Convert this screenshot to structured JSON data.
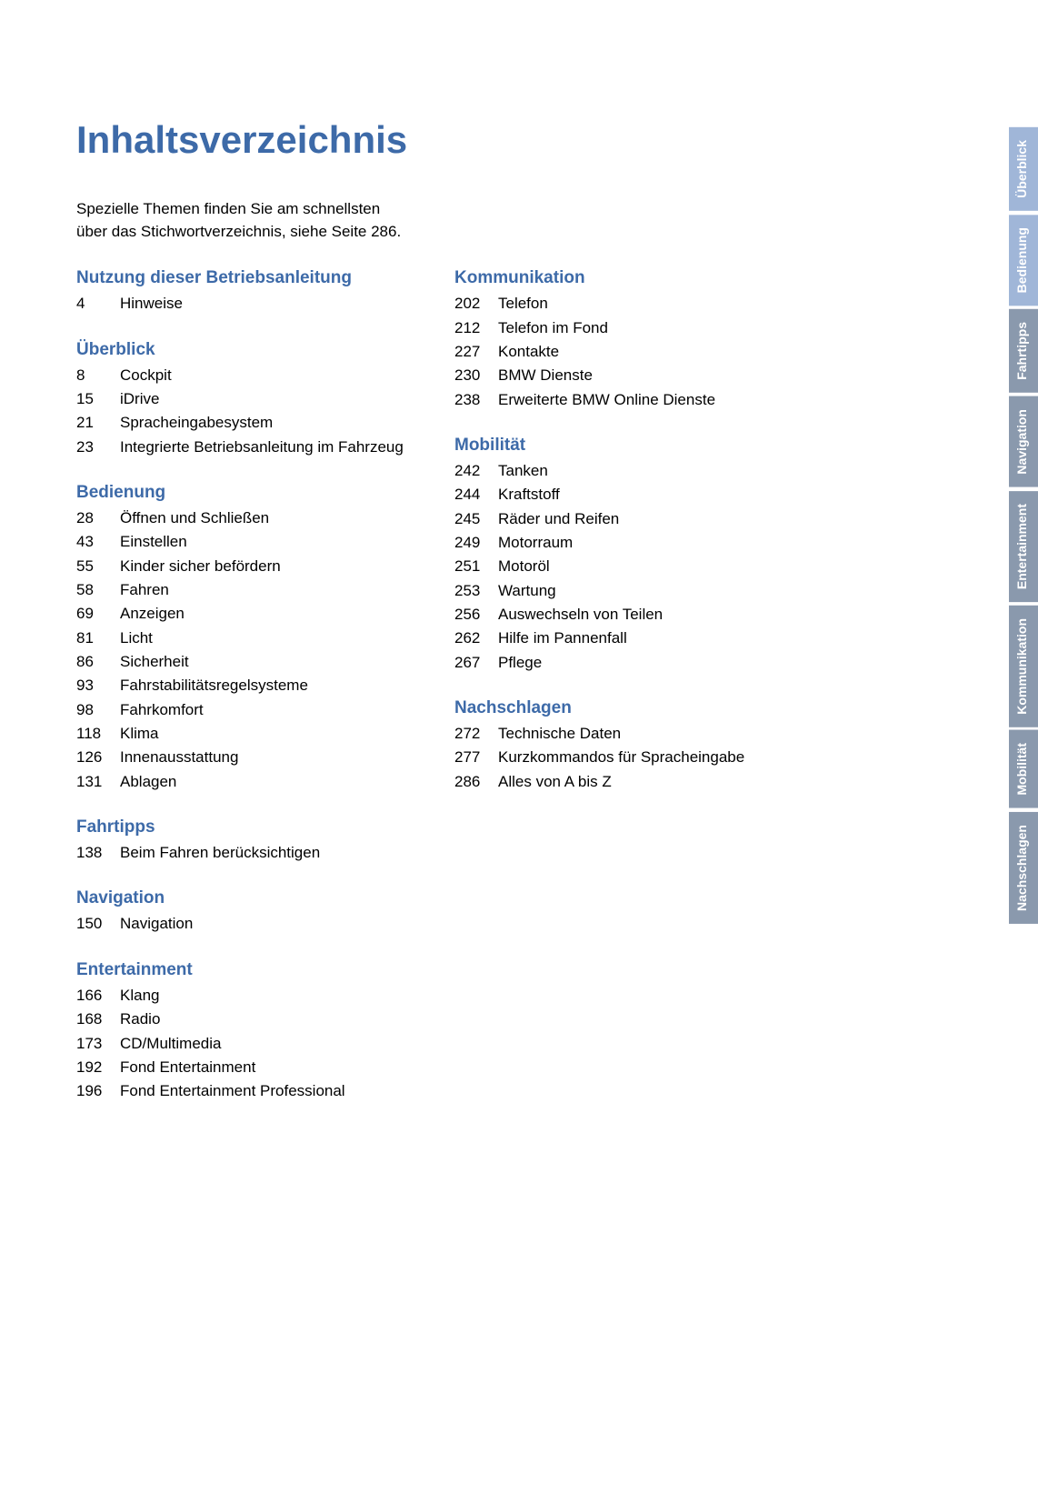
{
  "title": "Inhaltsverzeichnis",
  "intro": "Spezielle Themen finden Sie am schnellsten über das Stichwortverzeichnis, siehe Seite 286.",
  "colors": {
    "heading_blue": "#3d6aa8",
    "text_black": "#000000",
    "tab_active_bg": "#a0b6d8",
    "tab_inactive_bg": "#8a99ad",
    "tab_text": "#ffffff",
    "page_bg": "#ffffff"
  },
  "sections_left": [
    {
      "heading": "Nutzung dieser Betriebsanleitung",
      "items": [
        {
          "page": "4",
          "label": "Hinweise"
        }
      ]
    },
    {
      "heading": "Überblick",
      "items": [
        {
          "page": "8",
          "label": "Cockpit"
        },
        {
          "page": "15",
          "label": "iDrive"
        },
        {
          "page": "21",
          "label": "Spracheingabesystem"
        },
        {
          "page": "23",
          "label": "Integrierte Betriebsanleitung im Fahrzeug"
        }
      ]
    },
    {
      "heading": "Bedienung",
      "items": [
        {
          "page": "28",
          "label": "Öffnen und Schließen"
        },
        {
          "page": "43",
          "label": "Einstellen"
        },
        {
          "page": "55",
          "label": "Kinder sicher befördern"
        },
        {
          "page": "58",
          "label": "Fahren"
        },
        {
          "page": "69",
          "label": "Anzeigen"
        },
        {
          "page": "81",
          "label": "Licht"
        },
        {
          "page": "86",
          "label": "Sicherheit"
        },
        {
          "page": "93",
          "label": "Fahrstabilitätsregelsysteme"
        },
        {
          "page": "98",
          "label": "Fahrkomfort"
        },
        {
          "page": "118",
          "label": "Klima"
        },
        {
          "page": "126",
          "label": "Innenausstattung"
        },
        {
          "page": "131",
          "label": "Ablagen"
        }
      ]
    },
    {
      "heading": "Fahrtipps",
      "items": [
        {
          "page": "138",
          "label": "Beim Fahren berücksichtigen"
        }
      ]
    },
    {
      "heading": "Navigation",
      "items": [
        {
          "page": "150",
          "label": "Navigation"
        }
      ]
    },
    {
      "heading": "Entertainment",
      "items": [
        {
          "page": "166",
          "label": "Klang"
        },
        {
          "page": "168",
          "label": "Radio"
        },
        {
          "page": "173",
          "label": "CD/Multimedia"
        },
        {
          "page": "192",
          "label": "Fond Entertainment"
        },
        {
          "page": "196",
          "label": "Fond Entertainment Professional"
        }
      ]
    }
  ],
  "sections_right": [
    {
      "heading": "Kommunikation",
      "items": [
        {
          "page": "202",
          "label": "Telefon"
        },
        {
          "page": "212",
          "label": "Telefon im Fond"
        },
        {
          "page": "227",
          "label": "Kontakte"
        },
        {
          "page": "230",
          "label": "BMW Dienste"
        },
        {
          "page": "238",
          "label": "Erweiterte BMW Online Dienste"
        }
      ]
    },
    {
      "heading": "Mobilität",
      "items": [
        {
          "page": "242",
          "label": "Tanken"
        },
        {
          "page": "244",
          "label": "Kraftstoff"
        },
        {
          "page": "245",
          "label": "Räder und Reifen"
        },
        {
          "page": "249",
          "label": "Motorraum"
        },
        {
          "page": "251",
          "label": "Motoröl"
        },
        {
          "page": "253",
          "label": "Wartung"
        },
        {
          "page": "256",
          "label": "Auswechseln von Teilen"
        },
        {
          "page": "262",
          "label": "Hilfe im Pannenfall"
        },
        {
          "page": "267",
          "label": "Pflege"
        }
      ]
    },
    {
      "heading": "Nachschlagen",
      "items": [
        {
          "page": "272",
          "label": "Technische Daten"
        },
        {
          "page": "277",
          "label": "Kurzkommandos für Spracheingabe"
        },
        {
          "page": "286",
          "label": "Alles von A bis Z"
        }
      ]
    }
  ],
  "side_tabs": [
    {
      "label": "Überblick",
      "active": true
    },
    {
      "label": "Bedienung",
      "active": true
    },
    {
      "label": "Fahrtipps",
      "active": false
    },
    {
      "label": "Navigation",
      "active": false
    },
    {
      "label": "Entertainment",
      "active": false
    },
    {
      "label": "Kommunikation",
      "active": false
    },
    {
      "label": "Mobilität",
      "active": false
    },
    {
      "label": "Nachschlagen",
      "active": false
    }
  ]
}
